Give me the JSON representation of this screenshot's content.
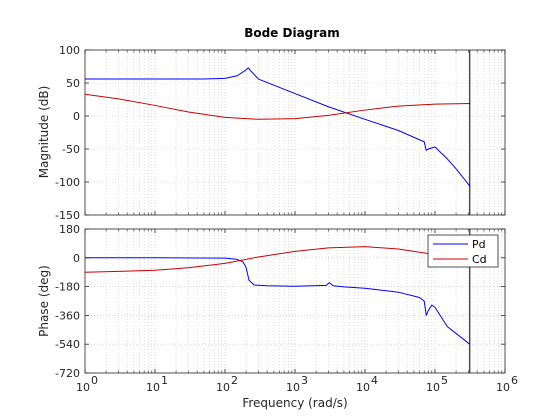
{
  "colors": {
    "pd": "#0000ff",
    "cd": "#cc0000",
    "axis": "#262626",
    "grid": "#bfbfbf"
  },
  "chart_data": {
    "type": "line",
    "title": "Bode Diagram",
    "xlabel": "Frequency  (rad/s)",
    "x_scale": "log",
    "xlim": [
      1,
      1000000
    ],
    "x_ticks": [
      1,
      10,
      100,
      1000,
      10000,
      100000,
      1000000
    ],
    "x_tick_labels": [
      {
        "base": "10",
        "exp": "0"
      },
      {
        "base": "10",
        "exp": "1"
      },
      {
        "base": "10",
        "exp": "2"
      },
      {
        "base": "10",
        "exp": "3"
      },
      {
        "base": "10",
        "exp": "4"
      },
      {
        "base": "10",
        "exp": "5"
      },
      {
        "base": "10",
        "exp": "6"
      }
    ],
    "vertical_marker_x": 314000,
    "grid": true,
    "legend_placement": "top-right",
    "legend": [
      "Pd",
      "Cd"
    ],
    "subplots": [
      {
        "ylabel": "Magnitude (dB)",
        "ylim": [
          -150,
          100
        ],
        "y_ticks": [
          100,
          50,
          0,
          -50,
          -100,
          -150
        ],
        "y_tick_labels": [
          "100",
          "50",
          "0",
          "-50",
          "-100",
          "-150"
        ],
        "series": [
          {
            "name": "Pd",
            "x": [
              1,
              10,
              50,
              100,
              150,
              200,
              215,
              240,
              300,
              1000,
              3000,
              10000,
              30000,
              60000,
              70000,
              75000,
              80000,
              100000,
              150000,
              200000,
              314000
            ],
            "y": [
              56,
              56,
              56,
              57,
              61,
              70,
              73,
              67,
              56,
              34,
              14,
              -5,
              -22,
              -36,
              -39,
              -52,
              -50,
              -47,
              -65,
              -80,
              -106
            ]
          },
          {
            "name": "Cd",
            "x": [
              1,
              3,
              10,
              30,
              100,
              300,
              1000,
              3000,
              10000,
              30000,
              100000,
              314000
            ],
            "y": [
              33,
              26,
              16,
              6,
              -2,
              -5,
              -4,
              1,
              9,
              15,
              18,
              19
            ]
          }
        ]
      },
      {
        "ylabel": "Phase (deg)",
        "ylim": [
          -720,
          180
        ],
        "y_ticks": [
          180,
          0,
          -180,
          -360,
          -540,
          -720
        ],
        "y_tick_labels": [
          "180",
          "0",
          "-180",
          "-360",
          "-540",
          "-720"
        ],
        "series": [
          {
            "name": "Pd",
            "x": [
              1,
              10,
              100,
              150,
              180,
              200,
              220,
              260,
              400,
              1000,
              2800,
              3100,
              3500,
              5000,
              10000,
              30000,
              60000,
              70000,
              75000,
              80000,
              90000,
              100000,
              150000,
              314000
            ],
            "y": [
              0,
              0,
              -2,
              -10,
              -25,
              -60,
              -140,
              -170,
              -175,
              -178,
              -172,
              -155,
              -175,
              -182,
              -190,
              -215,
              -248,
              -270,
              -360,
              -330,
              -295,
              -310,
              -430,
              -540
            ]
          },
          {
            "name": "Cd",
            "x": [
              1,
              3,
              10,
              30,
              100,
              300,
              1000,
              3000,
              10000,
              30000,
              100000,
              314000
            ],
            "y": [
              -90,
              -85,
              -78,
              -62,
              -35,
              5,
              40,
              62,
              70,
              55,
              20,
              5
            ]
          }
        ]
      }
    ]
  }
}
